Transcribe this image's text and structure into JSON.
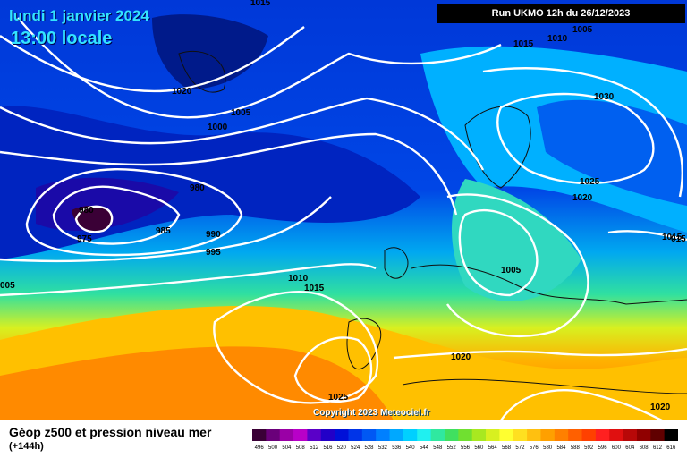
{
  "title": {
    "date": "lundi 1 janvier 2024",
    "time": "13:00 locale"
  },
  "run_info": "Run UKMO 12h du 26/12/2023",
  "copyright": "Copyright 2023 Meteociel.fr",
  "legend": {
    "title": "Géop z500 et pression niveau mer",
    "subtitle": "(+144h)",
    "scale_labels": [
      "496",
      "500",
      "504",
      "508",
      "512",
      "516",
      "520",
      "524",
      "528",
      "532",
      "536",
      "540",
      "544",
      "548",
      "552",
      "556",
      "560",
      "564",
      "568",
      "572",
      "576",
      "580",
      "584",
      "588",
      "592",
      "596",
      "600",
      "604",
      "608",
      "612",
      "616"
    ],
    "scale_colors": [
      "#3a0036",
      "#6a007a",
      "#9a00a6",
      "#b800c8",
      "#5a00c8",
      "#2200c8",
      "#0010d8",
      "#0034e8",
      "#0058f4",
      "#0080ff",
      "#00a8ff",
      "#00d0ff",
      "#20f0f0",
      "#30e8a0",
      "#40e060",
      "#70e030",
      "#a8e820",
      "#d8f020",
      "#ffff30",
      "#ffe020",
      "#ffc010",
      "#ffa000",
      "#ff8000",
      "#ff6000",
      "#ff4000",
      "#ff2020",
      "#e01010",
      "#b80808",
      "#900000",
      "#600000",
      "#000000"
    ]
  },
  "isobars": [
    "1015",
    "1010",
    "1005",
    "1015",
    "1020",
    "1030",
    "1005",
    "1000",
    "980",
    "980",
    "975",
    "985",
    "990",
    "995",
    "1025",
    "1020",
    "1015",
    "1005",
    "1010",
    "1015",
    "005",
    "1020",
    "1025",
    "1020",
    "015"
  ]
}
